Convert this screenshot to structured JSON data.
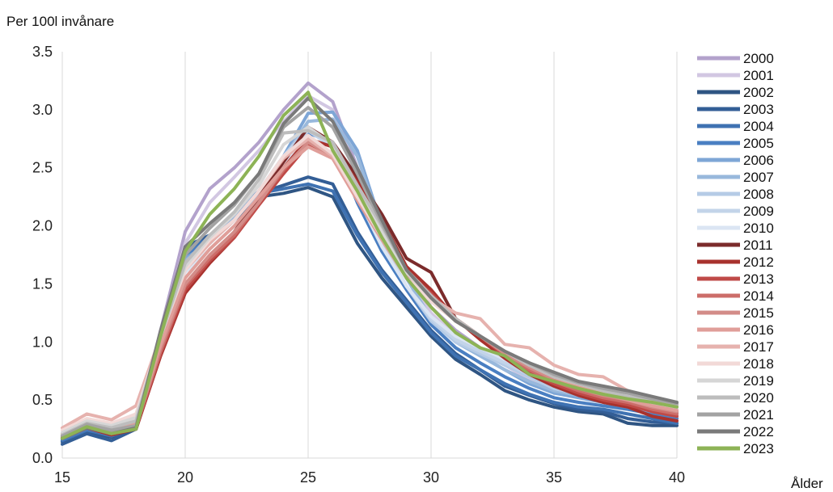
{
  "chart_data": {
    "type": "line",
    "title": "",
    "ylabel": "Per 100l invånare",
    "xlabel": "Ålder",
    "xlim": [
      15,
      40
    ],
    "ylim": [
      0,
      3.5
    ],
    "xticks": [
      "15",
      "20",
      "25",
      "30",
      "35",
      "40"
    ],
    "yticks": [
      "0.0",
      "0.5",
      "1.0",
      "1.5",
      "2.0",
      "2.5",
      "3.0",
      "3.5"
    ],
    "grid": "vertical",
    "legend": "right",
    "x": [
      15,
      16,
      17,
      18,
      19,
      20,
      21,
      22,
      23,
      24,
      25,
      26,
      27,
      28,
      29,
      30,
      31,
      32,
      33,
      34,
      35,
      36,
      37,
      38,
      39,
      40
    ],
    "series": [
      {
        "name": "2000",
        "color": "#b3a2cc",
        "values": [
          0.2,
          0.28,
          0.22,
          0.27,
          1.1,
          1.95,
          2.32,
          2.5,
          2.72,
          3.0,
          3.23,
          3.07,
          2.5,
          2.0,
          1.6,
          1.3,
          1.1,
          0.95,
          0.85,
          0.72,
          0.66,
          0.58,
          0.53,
          0.5,
          0.47,
          0.45
        ]
      },
      {
        "name": "2001",
        "color": "#d2c7e2",
        "values": [
          0.2,
          0.27,
          0.22,
          0.27,
          1.05,
          1.85,
          2.2,
          2.42,
          2.65,
          2.9,
          3.12,
          3.0,
          2.45,
          1.95,
          1.55,
          1.25,
          1.05,
          0.9,
          0.8,
          0.68,
          0.62,
          0.56,
          0.5,
          0.47,
          0.44,
          0.42
        ]
      },
      {
        "name": "2002",
        "color": "#2f5583",
        "values": [
          0.14,
          0.22,
          0.18,
          0.25,
          0.95,
          1.8,
          1.9,
          2.05,
          2.25,
          2.28,
          2.33,
          2.25,
          1.85,
          1.55,
          1.3,
          1.05,
          0.85,
          0.72,
          0.58,
          0.5,
          0.44,
          0.4,
          0.38,
          0.3,
          0.28,
          0.28
        ]
      },
      {
        "name": "2003",
        "color": "#335e96",
        "values": [
          0.12,
          0.21,
          0.15,
          0.25,
          0.95,
          1.82,
          1.92,
          2.08,
          2.28,
          2.35,
          2.42,
          2.36,
          1.95,
          1.62,
          1.36,
          1.1,
          0.9,
          0.76,
          0.62,
          0.54,
          0.47,
          0.42,
          0.4,
          0.34,
          0.31,
          0.3
        ]
      },
      {
        "name": "2004",
        "color": "#3f72b2",
        "values": [
          0.15,
          0.24,
          0.19,
          0.26,
          0.98,
          1.78,
          1.9,
          2.1,
          2.28,
          2.32,
          2.36,
          2.3,
          1.92,
          1.6,
          1.34,
          1.08,
          0.88,
          0.76,
          0.64,
          0.55,
          0.48,
          0.44,
          0.42,
          0.38,
          0.34,
          0.3
        ]
      },
      {
        "name": "2005",
        "color": "#4a7fc2",
        "values": [
          0.16,
          0.25,
          0.2,
          0.26,
          1.0,
          1.75,
          1.88,
          2.1,
          2.3,
          2.45,
          2.8,
          2.72,
          2.2,
          1.78,
          1.45,
          1.15,
          0.95,
          0.82,
          0.7,
          0.6,
          0.52,
          0.48,
          0.45,
          0.42,
          0.38,
          0.34
        ]
      },
      {
        "name": "2006",
        "color": "#7ea6d6",
        "values": [
          0.17,
          0.26,
          0.2,
          0.26,
          1.02,
          1.72,
          1.85,
          2.08,
          2.3,
          2.6,
          2.97,
          2.98,
          2.65,
          2.0,
          1.55,
          1.2,
          1.0,
          0.88,
          0.76,
          0.64,
          0.56,
          0.52,
          0.48,
          0.44,
          0.4,
          0.36
        ]
      },
      {
        "name": "2007",
        "color": "#98b8dc",
        "values": [
          0.17,
          0.26,
          0.2,
          0.26,
          1.02,
          1.7,
          1.85,
          2.06,
          2.28,
          2.58,
          2.9,
          2.92,
          2.6,
          1.98,
          1.55,
          1.2,
          1.0,
          0.88,
          0.76,
          0.66,
          0.58,
          0.54,
          0.5,
          0.46,
          0.42,
          0.38
        ]
      },
      {
        "name": "2008",
        "color": "#b5cbe6",
        "values": [
          0.18,
          0.27,
          0.21,
          0.26,
          1.0,
          1.68,
          1.85,
          2.05,
          2.3,
          2.6,
          2.85,
          2.7,
          2.3,
          1.85,
          1.48,
          1.18,
          1.0,
          0.9,
          0.8,
          0.7,
          0.6,
          0.55,
          0.5,
          0.46,
          0.42,
          0.38
        ]
      },
      {
        "name": "2009",
        "color": "#c3d4e9",
        "values": [
          0.18,
          0.27,
          0.21,
          0.26,
          1.0,
          1.68,
          1.85,
          2.05,
          2.3,
          2.6,
          2.82,
          2.68,
          2.28,
          1.84,
          1.48,
          1.2,
          1.02,
          0.92,
          0.82,
          0.72,
          0.62,
          0.56,
          0.51,
          0.47,
          0.43,
          0.39
        ]
      },
      {
        "name": "2010",
        "color": "#dbe5f3",
        "values": [
          0.19,
          0.28,
          0.22,
          0.27,
          1.0,
          1.6,
          1.8,
          2.0,
          2.25,
          2.55,
          2.75,
          2.62,
          2.25,
          1.82,
          1.48,
          1.22,
          1.05,
          0.95,
          0.85,
          0.75,
          0.66,
          0.6,
          0.55,
          0.5,
          0.45,
          0.41
        ]
      },
      {
        "name": "2011",
        "color": "#7b2b2b",
        "values": [
          0.17,
          0.26,
          0.2,
          0.25,
          0.9,
          1.45,
          1.7,
          1.95,
          2.25,
          2.55,
          2.85,
          2.72,
          2.42,
          2.1,
          1.72,
          1.6,
          1.2,
          1.05,
          0.88,
          0.76,
          0.66,
          0.58,
          0.52,
          0.48,
          0.44,
          0.4
        ]
      },
      {
        "name": "2012",
        "color": "#a8322e",
        "values": [
          0.17,
          0.26,
          0.2,
          0.25,
          0.88,
          1.42,
          1.68,
          1.9,
          2.2,
          2.5,
          2.75,
          2.68,
          2.38,
          2.05,
          1.65,
          1.45,
          1.2,
          1.02,
          0.86,
          0.72,
          0.62,
          0.54,
          0.48,
          0.44,
          0.36,
          0.32
        ]
      },
      {
        "name": "2013",
        "color": "#bf4a47",
        "values": [
          0.18,
          0.27,
          0.21,
          0.26,
          0.9,
          1.45,
          1.7,
          1.9,
          2.18,
          2.45,
          2.7,
          2.62,
          2.3,
          1.95,
          1.6,
          1.42,
          1.2,
          1.05,
          0.88,
          0.74,
          0.64,
          0.56,
          0.5,
          0.46,
          0.4,
          0.36
        ]
      },
      {
        "name": "2014",
        "color": "#cc6d69",
        "values": [
          0.19,
          0.28,
          0.22,
          0.27,
          0.92,
          1.48,
          1.72,
          1.92,
          2.2,
          2.48,
          2.72,
          2.62,
          2.28,
          1.92,
          1.58,
          1.4,
          1.2,
          1.05,
          0.9,
          0.76,
          0.66,
          0.58,
          0.52,
          0.48,
          0.42,
          0.38
        ]
      },
      {
        "name": "2015",
        "color": "#d38c88",
        "values": [
          0.2,
          0.29,
          0.23,
          0.28,
          0.95,
          1.5,
          1.75,
          1.95,
          2.2,
          2.5,
          2.72,
          2.6,
          2.25,
          1.9,
          1.56,
          1.38,
          1.18,
          1.05,
          0.9,
          0.78,
          0.68,
          0.6,
          0.54,
          0.5,
          0.44,
          0.4
        ]
      },
      {
        "name": "2016",
        "color": "#e09e99",
        "values": [
          0.21,
          0.3,
          0.24,
          0.3,
          0.98,
          1.55,
          1.8,
          2.0,
          2.25,
          2.5,
          2.68,
          2.58,
          2.22,
          1.88,
          1.55,
          1.38,
          1.18,
          1.05,
          0.92,
          0.8,
          0.7,
          0.62,
          0.56,
          0.5,
          0.45,
          0.41
        ]
      },
      {
        "name": "2017",
        "color": "#e6b2ae",
        "values": [
          0.26,
          0.38,
          0.33,
          0.45,
          1.05,
          1.62,
          1.85,
          2.05,
          2.3,
          2.58,
          2.75,
          2.6,
          2.25,
          1.9,
          1.55,
          1.38,
          1.25,
          1.2,
          0.98,
          0.95,
          0.8,
          0.72,
          0.7,
          0.58,
          0.52,
          0.46
        ]
      },
      {
        "name": "2018",
        "color": "#f2d9d7",
        "values": [
          0.24,
          0.34,
          0.3,
          0.38,
          1.05,
          1.62,
          1.88,
          2.05,
          2.3,
          2.6,
          2.78,
          2.62,
          2.25,
          1.9,
          1.55,
          1.35,
          1.18,
          1.05,
          0.92,
          0.8,
          0.7,
          0.64,
          0.58,
          0.52,
          0.48,
          0.44
        ]
      },
      {
        "name": "2019",
        "color": "#d6d6d6",
        "values": [
          0.22,
          0.32,
          0.28,
          0.35,
          1.05,
          1.65,
          1.9,
          2.1,
          2.35,
          2.7,
          2.85,
          2.7,
          2.3,
          1.95,
          1.6,
          1.38,
          1.18,
          1.05,
          0.92,
          0.8,
          0.7,
          0.64,
          0.58,
          0.53,
          0.48,
          0.44
        ]
      },
      {
        "name": "2020",
        "color": "#bdbdbd",
        "values": [
          0.2,
          0.3,
          0.26,
          0.32,
          1.05,
          1.68,
          1.92,
          2.12,
          2.4,
          2.8,
          2.82,
          2.72,
          2.35,
          2.0,
          1.62,
          1.4,
          1.2,
          1.05,
          0.92,
          0.8,
          0.7,
          0.64,
          0.58,
          0.53,
          0.49,
          0.45
        ]
      },
      {
        "name": "2021",
        "color": "#a3a3a3",
        "values": [
          0.19,
          0.29,
          0.24,
          0.28,
          1.08,
          1.75,
          1.98,
          2.18,
          2.45,
          2.85,
          3.02,
          2.85,
          2.45,
          2.02,
          1.62,
          1.38,
          1.18,
          1.05,
          0.92,
          0.82,
          0.72,
          0.65,
          0.6,
          0.56,
          0.51,
          0.47
        ]
      },
      {
        "name": "2022",
        "color": "#7a7a7a",
        "values": [
          0.17,
          0.26,
          0.21,
          0.26,
          1.1,
          1.82,
          2.02,
          2.2,
          2.45,
          2.88,
          3.1,
          2.9,
          2.5,
          2.05,
          1.62,
          1.38,
          1.18,
          1.05,
          0.92,
          0.82,
          0.74,
          0.66,
          0.62,
          0.58,
          0.53,
          0.48
        ]
      },
      {
        "name": "2023",
        "color": "#8db356",
        "values": [
          0.17,
          0.27,
          0.21,
          0.25,
          1.05,
          1.78,
          2.1,
          2.32,
          2.6,
          2.95,
          3.15,
          2.65,
          2.3,
          1.9,
          1.55,
          1.3,
          1.08,
          0.95,
          0.88,
          0.72,
          0.66,
          0.6,
          0.55,
          0.51,
          0.48,
          0.44
        ]
      }
    ]
  }
}
